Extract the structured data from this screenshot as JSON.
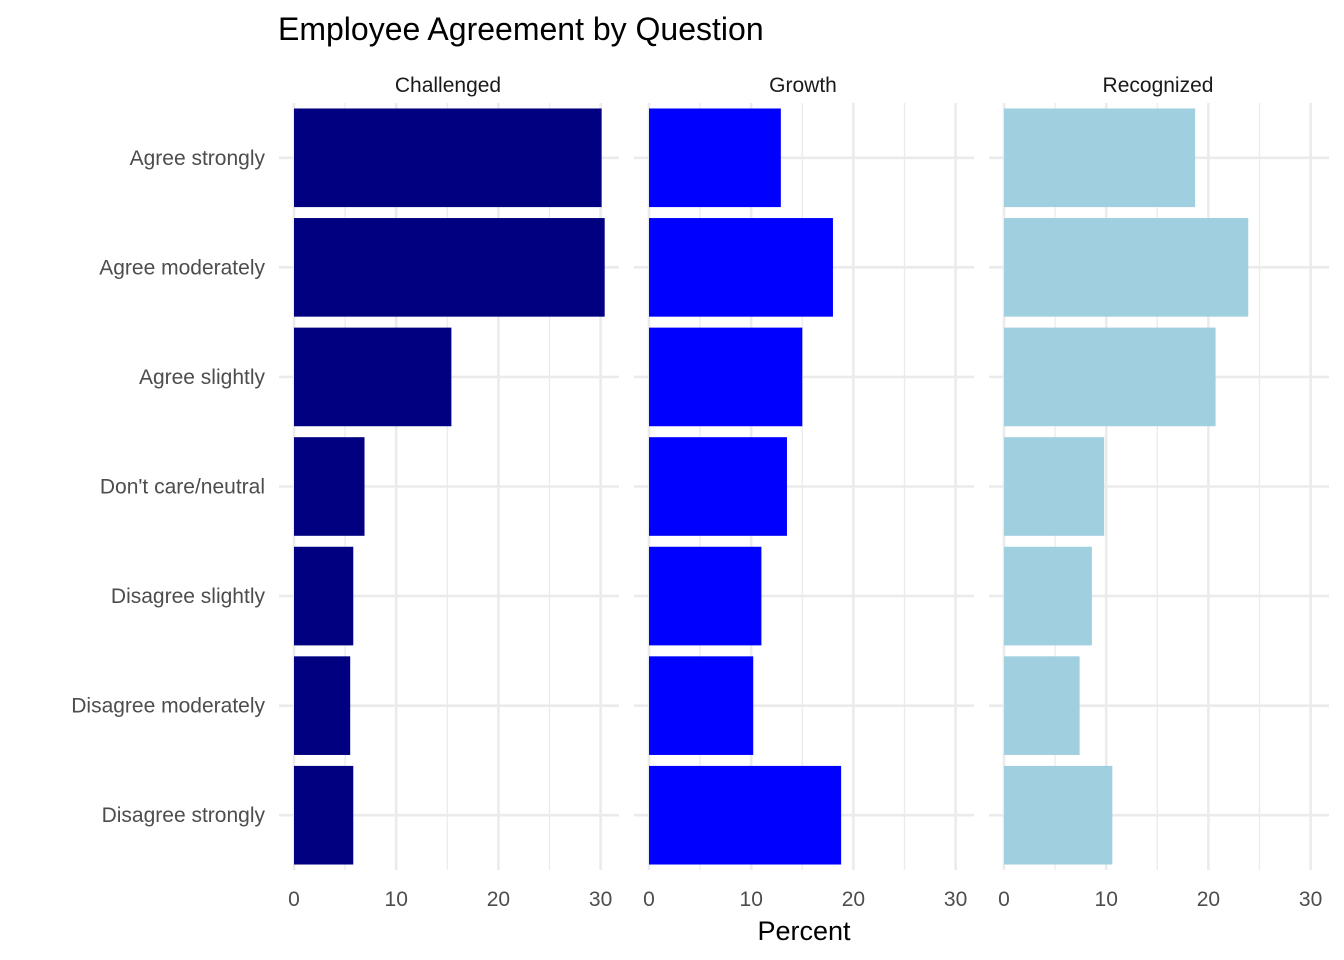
{
  "chart_data": {
    "type": "bar",
    "orientation": "horizontal",
    "title": "Employee Agreement by Question",
    "xlabel": "Percent",
    "ylabel": "",
    "categories": [
      "Agree strongly",
      "Agree moderately",
      "Agree slightly",
      "Don't care/neutral",
      "Disagree slightly",
      "Disagree moderately",
      "Disagree strongly"
    ],
    "xlim": [
      0,
      30
    ],
    "x_ticks": [
      0,
      10,
      20,
      30
    ],
    "grid": true,
    "legend": "none",
    "facets": [
      {
        "name": "Challenged",
        "color": "#000080",
        "values": [
          30.1,
          30.4,
          15.4,
          6.9,
          5.8,
          5.5,
          5.8
        ]
      },
      {
        "name": "Growth",
        "color": "#0000FF",
        "values": [
          12.9,
          18.0,
          15.0,
          13.5,
          11.0,
          10.2,
          18.8
        ]
      },
      {
        "name": "Recognized",
        "color": "#A0CFDF",
        "values": [
          18.7,
          23.9,
          20.7,
          9.8,
          8.6,
          7.4,
          10.6
        ]
      }
    ]
  }
}
